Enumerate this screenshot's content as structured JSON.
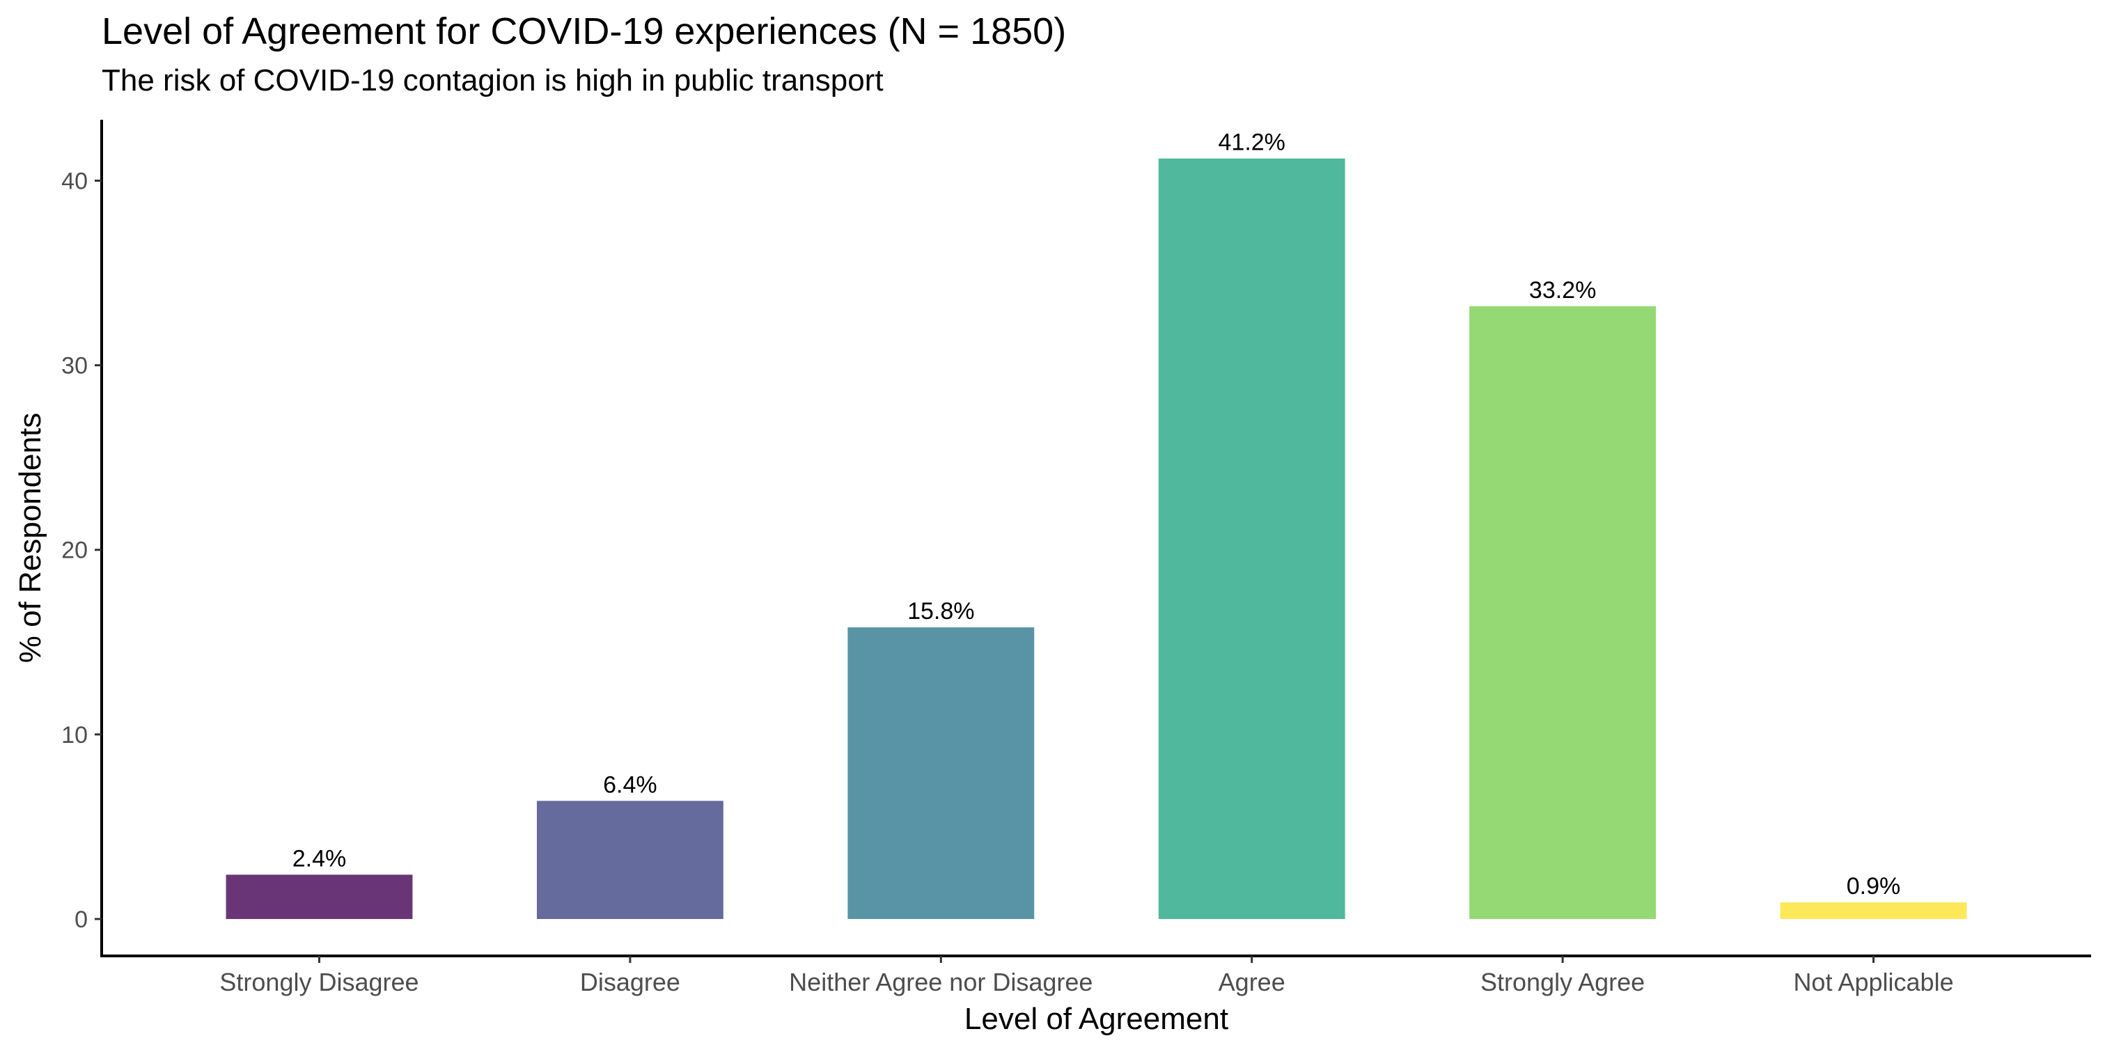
{
  "chart_data": {
    "type": "bar",
    "title": "Level of Agreement for COVID-19 experiences (N = 1850)",
    "subtitle": "The risk of COVID-19 contagion is high in public transport",
    "xlabel": "Level of Agreement",
    "ylabel": "% of Respondents",
    "categories": [
      "Strongly Disagree",
      "Disagree",
      "Neither Agree nor Disagree",
      "Agree",
      "Strongly Agree",
      "Not Applicable"
    ],
    "values": [
      2.4,
      6.4,
      15.8,
      41.2,
      33.2,
      0.9
    ],
    "labels": [
      "2.4%",
      "6.4%",
      "15.8%",
      "41.2%",
      "33.2%",
      "0.9%"
    ],
    "colors": [
      "#6A3576",
      "#666B9E",
      "#5893A6",
      "#4FB89D",
      "#95D974",
      "#FDE85A"
    ],
    "yticks": [
      0,
      10,
      20,
      30,
      40
    ],
    "ylim": [
      -2,
      43.3
    ],
    "grid": false,
    "legend": "none"
  }
}
